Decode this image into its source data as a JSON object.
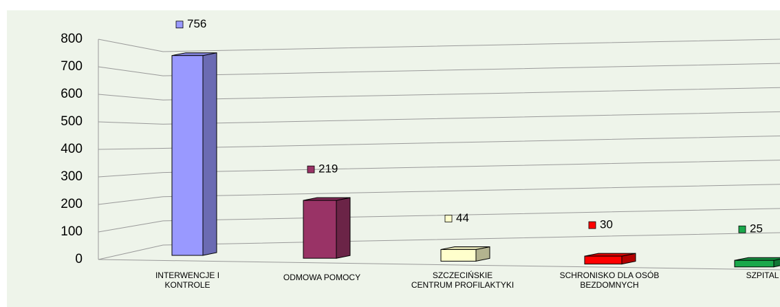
{
  "chart_data": {
    "type": "bar3d",
    "categories": [
      "INTERWENCJE I KONTROLE",
      "ODMOWA POMOCY",
      "SZCZECIŃSKIE CENTRUM PROFILAKTYKI",
      "SCHRONISKO DLA OSÓB BEZDOMNYCH",
      "SZPITAL"
    ],
    "values": [
      756,
      219,
      44,
      30,
      25
    ],
    "colors": [
      "#9999ff",
      "#993366",
      "#ffffcc",
      "#ff0000",
      "#1aa84b"
    ],
    "ylim": [
      0,
      800
    ],
    "yticks": [
      0,
      100,
      200,
      300,
      400,
      500,
      600,
      700,
      800
    ],
    "grid": true
  }
}
